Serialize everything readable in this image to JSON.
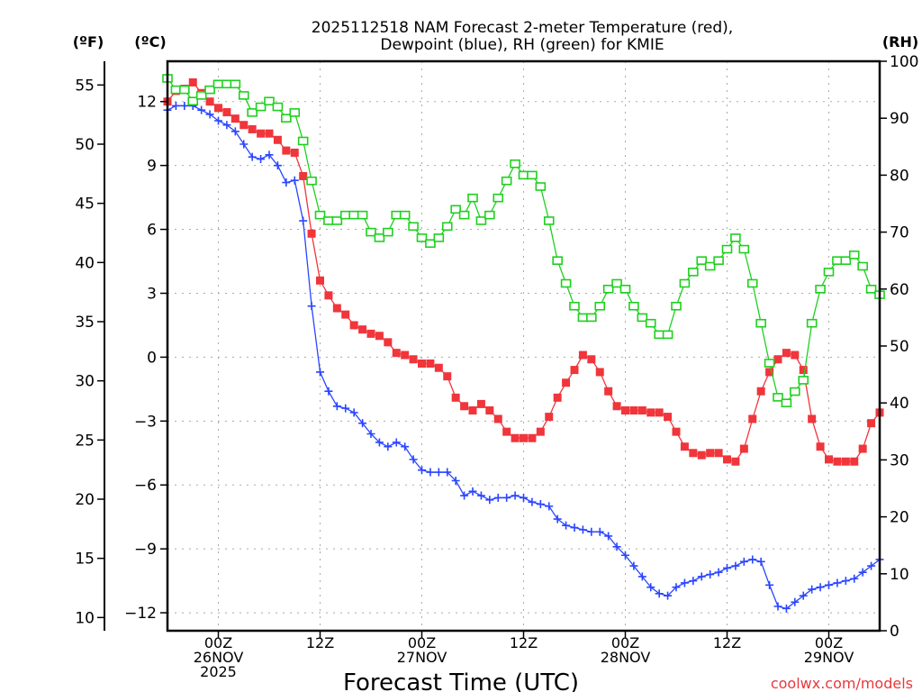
{
  "chart_data": {
    "type": "line",
    "title": [
      "2025112518 NAM Forecast 2-meter Temperature (red),",
      "Dewpoint (blue), RH (green) for KMIE"
    ],
    "xlabel": "Forecast Time (UTC)",
    "credit": "coolwx.com/models",
    "units": {
      "f": "(ºF)",
      "c": "(ºC)",
      "rh": "(RH)"
    },
    "x_unit": "forecast hour from 18Z 25NOV2025",
    "x_range": [
      0,
      84
    ],
    "x_ticks": [
      {
        "hour": 6,
        "lines": [
          "00Z",
          "26NOV",
          "2025"
        ]
      },
      {
        "hour": 18,
        "lines": [
          "12Z"
        ]
      },
      {
        "hour": 30,
        "lines": [
          "00Z",
          "27NOV"
        ]
      },
      {
        "hour": 42,
        "lines": [
          "12Z"
        ]
      },
      {
        "hour": 54,
        "lines": [
          "00Z",
          "28NOV"
        ]
      },
      {
        "hour": 66,
        "lines": [
          "12Z"
        ]
      },
      {
        "hour": 78,
        "lines": [
          "00Z",
          "29NOV"
        ]
      }
    ],
    "yleft_f_ticks": [
      "55",
      "50",
      "45",
      "40",
      "35",
      "30",
      "25",
      "20",
      "15",
      "10"
    ],
    "yleft_c_ticks": [
      "12",
      "9",
      "6",
      "3",
      "0",
      "−3",
      "−6",
      "−9",
      "−12"
    ],
    "yright_rh_ticks": [
      "100",
      "90",
      "80",
      "70",
      "60",
      "50",
      "40",
      "30",
      "20",
      "10",
      "0"
    ],
    "yc_range": [
      -13.5,
      13.3
    ],
    "yrh_range": [
      0,
      100
    ],
    "grid": true,
    "colors": {
      "temp": "#f0353b",
      "dew": "#2a45ff",
      "rh": "#1ed01e",
      "grid": "#aaaaaa"
    },
    "series": [
      {
        "name": "Temperature (°C)",
        "key": "temp",
        "values": [
          12.0,
          12.5,
          12.6,
          12.9,
          12.4,
          12.0,
          11.7,
          11.5,
          11.2,
          10.9,
          10.7,
          10.5,
          10.5,
          10.2,
          9.7,
          9.6,
          8.5,
          5.8,
          3.6,
          2.9,
          2.3,
          2.0,
          1.5,
          1.3,
          1.1,
          1.0,
          0.7,
          0.2,
          0.1,
          -0.1,
          -0.3,
          -0.3,
          -0.5,
          -0.9,
          -1.9,
          -2.3,
          -2.5,
          -2.2,
          -2.5,
          -2.9,
          -3.5,
          -3.8,
          -3.8,
          -3.8,
          -3.5,
          -2.8,
          -1.9,
          -1.2,
          -0.6,
          0.1,
          -0.1,
          -0.7,
          -1.6,
          -2.3,
          -2.5,
          -2.5,
          -2.5,
          -2.6,
          -2.6,
          -2.8,
          -3.5,
          -4.2,
          -4.5,
          -4.6,
          -4.5,
          -4.5,
          -4.8,
          -4.9,
          -4.3,
          -2.9,
          -1.6,
          -0.7,
          -0.1,
          0.2,
          0.1,
          -0.6,
          -2.9,
          -4.2,
          -4.8,
          -4.9,
          -4.9,
          -4.9,
          -4.3,
          -3.1,
          -2.6
        ]
      },
      {
        "name": "Dewpoint (°C)",
        "key": "dew",
        "values": [
          11.6,
          11.8,
          11.8,
          11.8,
          11.6,
          11.4,
          11.1,
          10.9,
          10.6,
          10.0,
          9.4,
          9.3,
          9.5,
          9.0,
          8.2,
          8.3,
          6.4,
          2.4,
          -0.7,
          -1.6,
          -2.3,
          -2.4,
          -2.6,
          -3.1,
          -3.6,
          -4.0,
          -4.2,
          -4.0,
          -4.2,
          -4.8,
          -5.3,
          -5.4,
          -5.4,
          -5.4,
          -5.8,
          -6.5,
          -6.3,
          -6.5,
          -6.7,
          -6.6,
          -6.6,
          -6.5,
          -6.6,
          -6.8,
          -6.9,
          -7.0,
          -7.6,
          -7.9,
          -8.0,
          -8.1,
          -8.2,
          -8.2,
          -8.4,
          -8.9,
          -9.3,
          -9.8,
          -10.3,
          -10.8,
          -11.1,
          -11.2,
          -10.8,
          -10.6,
          -10.5,
          -10.3,
          -10.2,
          -10.1,
          -9.9,
          -9.8,
          -9.6,
          -9.5,
          -9.6,
          -10.7,
          -11.7,
          -11.8,
          -11.5,
          -11.2,
          -10.9,
          -10.8,
          -10.7,
          -10.6,
          -10.5,
          -10.4,
          -10.1,
          -9.8,
          -9.5
        ]
      },
      {
        "name": "RH (%)",
        "key": "rh",
        "values": [
          97,
          95,
          95,
          93,
          94,
          95,
          96,
          96,
          96,
          94,
          91,
          92,
          93,
          92,
          90,
          91,
          86,
          79,
          73,
          72,
          72,
          73,
          73,
          73,
          70,
          69,
          70,
          73,
          73,
          71,
          69,
          68,
          69,
          71,
          74,
          73,
          76,
          72,
          73,
          76,
          79,
          82,
          80,
          80,
          78,
          72,
          65,
          61,
          57,
          55,
          55,
          57,
          60,
          61,
          60,
          57,
          55,
          54,
          52,
          52,
          57,
          61,
          63,
          65,
          64,
          65,
          67,
          69,
          67,
          61,
          54,
          47,
          41,
          40,
          42,
          44,
          54,
          60,
          63,
          65,
          65,
          66,
          64,
          60,
          59
        ]
      }
    ]
  }
}
